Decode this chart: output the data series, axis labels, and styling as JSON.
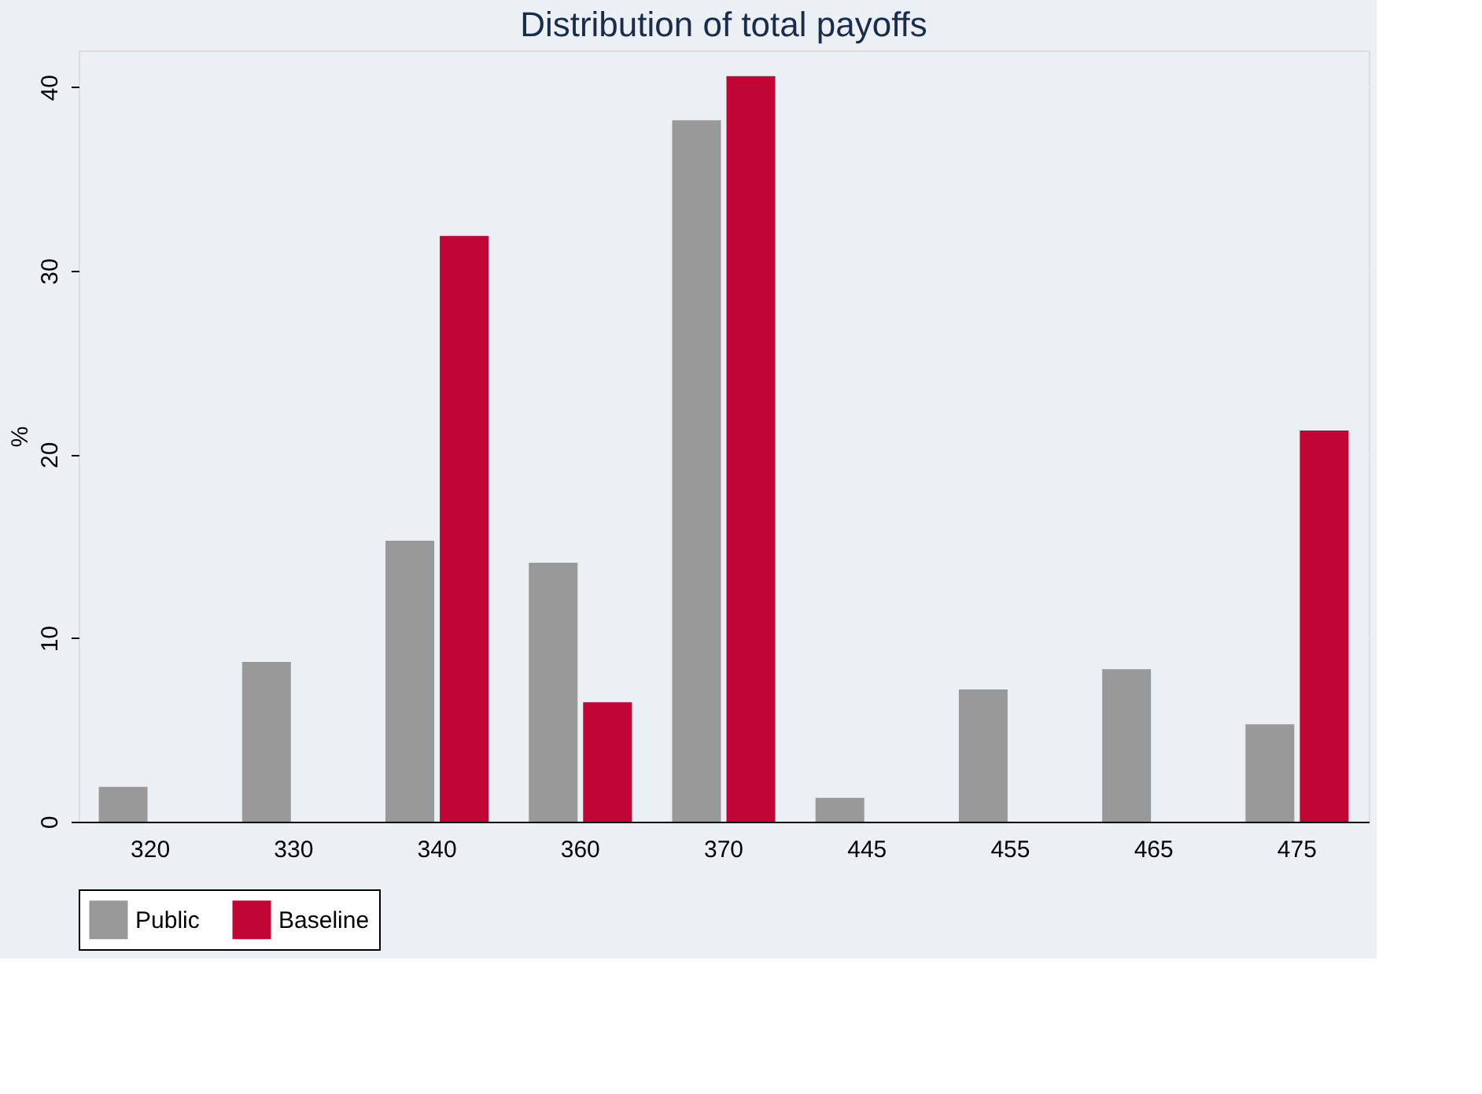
{
  "chart_data": {
    "type": "bar",
    "title": "Distribution of total payoffs",
    "ylabel": "%",
    "categories": [
      "320",
      "330",
      "340",
      "360",
      "370",
      "445",
      "455",
      "465",
      "475"
    ],
    "series": [
      {
        "name": "Public",
        "color": "#999999",
        "values": [
          1.9,
          8.7,
          15.3,
          14.1,
          38.2,
          1.3,
          7.2,
          8.3,
          5.3
        ]
      },
      {
        "name": "Baseline",
        "color": "#c10534",
        "values": [
          null,
          null,
          31.9,
          6.5,
          40.6,
          null,
          null,
          null,
          21.3
        ]
      }
    ],
    "ylim": [
      0,
      42
    ],
    "yticks": [
      0,
      10,
      20,
      30,
      40
    ],
    "grid": "y",
    "legend": "bottom"
  }
}
